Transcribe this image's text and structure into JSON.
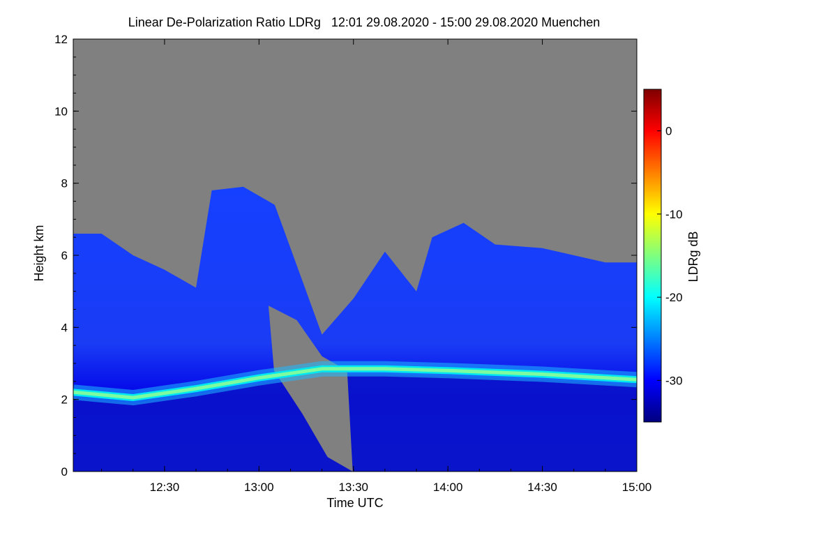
{
  "chart_data": {
    "type": "heatmap",
    "title": "Linear De-Polarization Ratio LDRg   12:01 29.08.2020 - 15:00 29.08.2020 Muenchen",
    "xlabel": "Time UTC",
    "ylabel": "Height km",
    "colorbar_label": "LDRg dB",
    "xlim": [
      "12:01",
      "15:00"
    ],
    "ylim": [
      0,
      12
    ],
    "x_ticks": [
      "12:30",
      "13:00",
      "13:30",
      "14:00",
      "14:30",
      "15:00"
    ],
    "y_ticks": [
      "0",
      "2",
      "4",
      "6",
      "8",
      "10",
      "12"
    ],
    "colorbar_range": [
      -35,
      5
    ],
    "colorbar_ticks": [
      "0",
      "-10",
      "-20",
      "-30"
    ],
    "missing_value_color": "#808080",
    "colormap": [
      "#00007f",
      "#0000ff",
      "#007fff",
      "#00ffff",
      "#7fff7f",
      "#ffff00",
      "#ff7f00",
      "#ff0000",
      "#7f0000"
    ],
    "grid": false,
    "legend": "right (colorbar)",
    "features": {
      "cloud_top_km": [
        {
          "time": "12:01",
          "height": 6.6
        },
        {
          "time": "12:10",
          "height": 6.6
        },
        {
          "time": "12:20",
          "height": 6.0
        },
        {
          "time": "12:30",
          "height": 5.6
        },
        {
          "time": "12:40",
          "height": 5.1
        },
        {
          "time": "12:45",
          "height": 7.8
        },
        {
          "time": "12:55",
          "height": 7.9
        },
        {
          "time": "13:05",
          "height": 7.4
        },
        {
          "time": "13:20",
          "height": 3.8
        },
        {
          "time": "13:30",
          "height": 4.8
        },
        {
          "time": "13:40",
          "height": 6.1
        },
        {
          "time": "13:50",
          "height": 5.0
        },
        {
          "time": "13:55",
          "height": 6.5
        },
        {
          "time": "14:05",
          "height": 6.9
        },
        {
          "time": "14:15",
          "height": 6.3
        },
        {
          "time": "14:30",
          "height": 6.2
        },
        {
          "time": "14:40",
          "height": 6.0
        },
        {
          "time": "14:50",
          "height": 5.8
        },
        {
          "time": "15:00",
          "height": 5.8
        }
      ],
      "melting_layer_km": [
        {
          "time": "12:01",
          "height": 2.2,
          "ldr": -15
        },
        {
          "time": "12:20",
          "height": 2.05,
          "ldr": -14
        },
        {
          "time": "12:40",
          "height": 2.3,
          "ldr": -16
        },
        {
          "time": "13:00",
          "height": 2.6,
          "ldr": -18
        },
        {
          "time": "13:20",
          "height": 2.85,
          "ldr": -17
        },
        {
          "time": "13:40",
          "height": 2.85,
          "ldr": -19
        },
        {
          "time": "14:00",
          "height": 2.8,
          "ldr": -18
        },
        {
          "time": "14:30",
          "height": 2.7,
          "ldr": -17
        },
        {
          "time": "15:00",
          "height": 2.55,
          "ldr": -16
        }
      ],
      "no_signal_gap": [
        {
          "time": "13:03",
          "height_top": 4.6,
          "height_bottom": 2.8
        },
        {
          "time": "13:12",
          "height_top": 4.2,
          "height_bottom": 1.6
        },
        {
          "time": "13:20",
          "height_top": 3.2,
          "height_bottom": 0.4
        },
        {
          "time": "13:28",
          "height_top": 2.8,
          "height_bottom": 0.0
        }
      ]
    }
  }
}
